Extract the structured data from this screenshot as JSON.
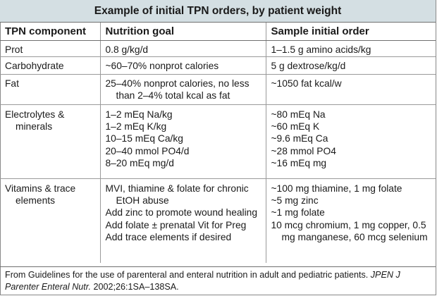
{
  "title": "Example of initial TPN orders, by patient weight",
  "columns": [
    "TPN component",
    "Nutrition goal",
    "Sample initial order"
  ],
  "rows": [
    {
      "component": [
        "Prot"
      ],
      "goal": [
        "0.8 g/kg/d"
      ],
      "order": [
        "1–1.5 g amino acids/kg"
      ]
    },
    {
      "component": [
        "Carbohydrate"
      ],
      "goal": [
        "~60–70% nonprot calories"
      ],
      "order": [
        "5 g dextrose/kg/d"
      ]
    },
    {
      "component": [
        "Fat"
      ],
      "goal": [
        "25–40% nonprot calories, no less than 2–4% total kcal as fat"
      ],
      "order": [
        "~1050 fat kcal/w"
      ]
    },
    {
      "component": [
        "Electrolytes & minerals"
      ],
      "goal": [
        "1–2 mEq Na/kg",
        "1–2 mEq K/kg",
        "10–15 mEq Ca/kg",
        "20–40 mmol PO4/d",
        "8–20 mEq mg/d"
      ],
      "order": [
        "~80 mEq Na",
        "~60 mEq K",
        "~9.6 mEq Ca",
        "~28 mmol PO4",
        "~16 mEq mg"
      ]
    },
    {
      "component": [
        "Vitamins & trace elements"
      ],
      "goal": [
        "MVI, thiamine & folate for chronic EtOH abuse",
        "Add zinc to promote wound healing",
        "Add folate ± prenatal Vit for Preg",
        "Add trace elements if desired"
      ],
      "order": [
        "~100 mg thiamine, 1 mg folate",
        "~5 mg zinc",
        "~1 mg folate",
        "10 mcg chromium, 1 mg copper, 0.5 mg manganese, 60 mcg selenium"
      ]
    }
  ],
  "footnote": {
    "text": "From Guidelines for the use of parenteral and enteral nutrition in adult and pediatric patients. ",
    "journal": "JPEN J Parenter Enteral Nutr.",
    "citation": " 2002;26:1SA–138SA."
  }
}
